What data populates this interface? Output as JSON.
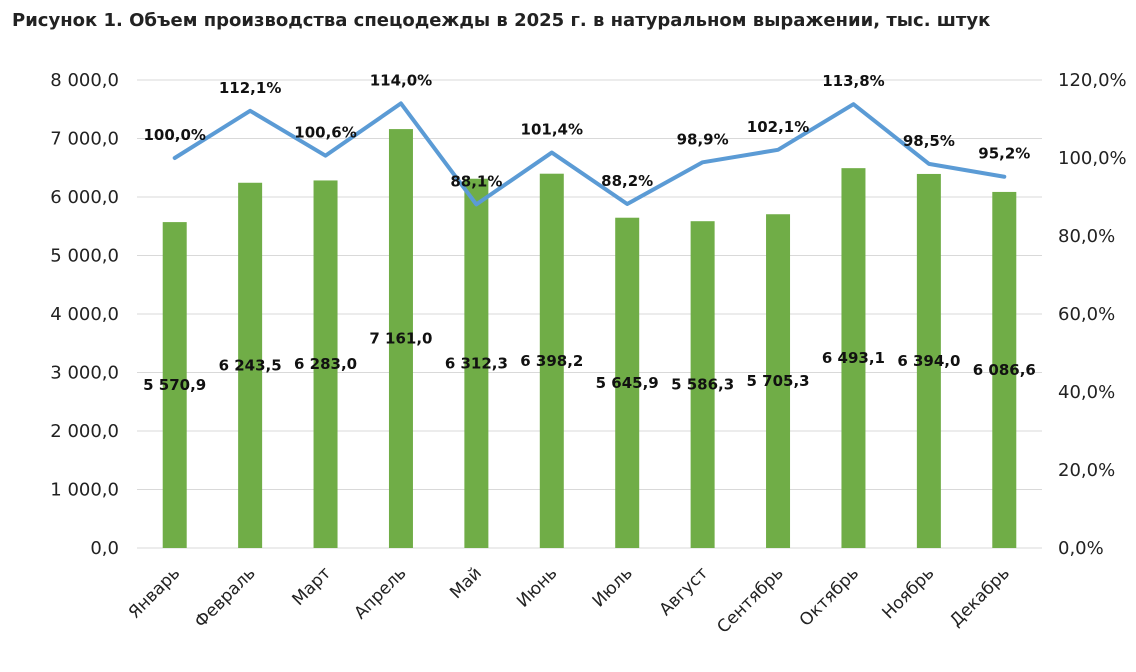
{
  "chart_data": {
    "type": "bar",
    "title": "Рисунок 1. Объем производства спецодежды в 2025 г. в натуральном выражении, тыс. штук",
    "categories": [
      "Январь",
      "Февраль",
      "Март",
      "Апрель",
      "Май",
      "Июнь",
      "Июль",
      "Август",
      "Сентябрь",
      "Октябрь",
      "Ноябрь",
      "Декабрь"
    ],
    "series": [
      {
        "type": "bar",
        "axis": "left",
        "values": [
          5570.9,
          6243.5,
          6283.0,
          7161.0,
          6312.3,
          6398.2,
          5645.9,
          5586.3,
          5705.3,
          6493.1,
          6394.0,
          6086.6
        ],
        "labels": [
          "5 570,9",
          "6 243,5",
          "6 283,0",
          "7 161,0",
          "6 312,3",
          "6 398,2",
          "5 645,9",
          "5 586,3",
          "5 705,3",
          "6 493,1",
          "6 394,0",
          "6 086,6"
        ]
      },
      {
        "type": "line",
        "axis": "right",
        "values": [
          100.0,
          112.1,
          100.6,
          114.0,
          88.1,
          101.4,
          88.2,
          98.9,
          102.1,
          113.8,
          98.5,
          95.2
        ],
        "labels": [
          "100,0%",
          "112,1%",
          "100,6%",
          "114,0%",
          "88,1%",
          "101,4%",
          "88,2%",
          "98,9%",
          "102,1%",
          "113,8%",
          "98,5%",
          "95,2%"
        ]
      }
    ],
    "y_left": {
      "min": 0,
      "max": 8000,
      "ticks": [
        "0,0",
        "1 000,0",
        "2 000,0",
        "3 000,0",
        "4 000,0",
        "5 000,0",
        "6 000,0",
        "7 000,0",
        "8 000,0"
      ]
    },
    "y_right": {
      "min": 0,
      "max": 120,
      "ticks": [
        "0,0%",
        "20,0%",
        "40,0%",
        "60,0%",
        "80,0%",
        "100,0%",
        "120,0%"
      ]
    },
    "grid": true,
    "legend": "none",
    "colors": {
      "bar": "#70AD47",
      "line": "#5B9BD5",
      "grid": "#D9D9D9"
    }
  }
}
